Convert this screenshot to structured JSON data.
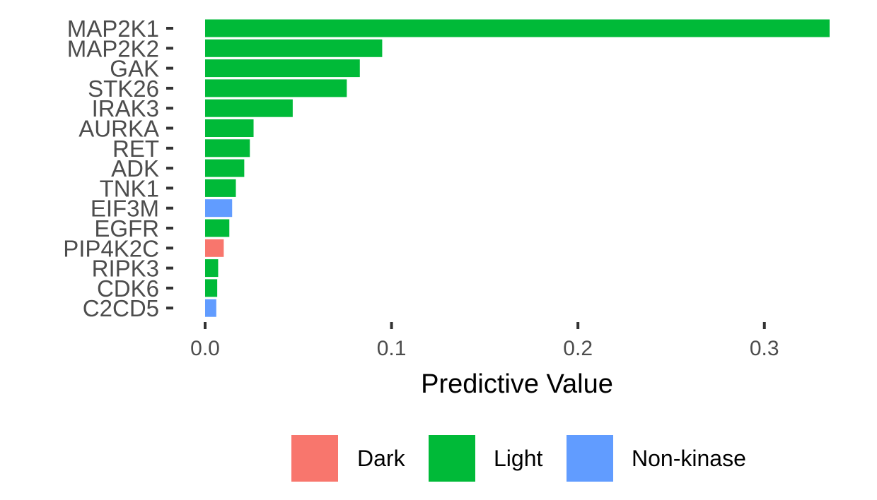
{
  "chart_data": {
    "type": "bar",
    "orientation": "horizontal",
    "title": "",
    "xlabel": "Predictive Value",
    "ylabel": "",
    "xlim": [
      0,
      0.335
    ],
    "xticks": [
      0.0,
      0.1,
      0.2,
      0.3
    ],
    "xtick_labels": [
      "0.0",
      "0.1",
      "0.2",
      "0.3"
    ],
    "grid": false,
    "legend_position": "bottom",
    "categories": [
      "MAP2K1",
      "MAP2K2",
      "GAK",
      "STK26",
      "IRAK3",
      "AURKA",
      "RET",
      "ADK",
      "TNK1",
      "EIF3M",
      "EGFR",
      "PIP4K2C",
      "RIPK3",
      "CDK6",
      "C2CD5"
    ],
    "values": [
      0.335,
      0.095,
      0.083,
      0.076,
      0.047,
      0.026,
      0.024,
      0.021,
      0.0165,
      0.0145,
      0.013,
      0.01,
      0.007,
      0.0065,
      0.006
    ],
    "groups": [
      "Light",
      "Light",
      "Light",
      "Light",
      "Light",
      "Light",
      "Light",
      "Light",
      "Light",
      "Non-kinase",
      "Light",
      "Dark",
      "Light",
      "Light",
      "Non-kinase"
    ],
    "legend": [
      {
        "label": "Dark",
        "color": "#f8766d"
      },
      {
        "label": "Light",
        "color": "#00ba38"
      },
      {
        "label": "Non-kinase",
        "color": "#619cff"
      }
    ]
  }
}
